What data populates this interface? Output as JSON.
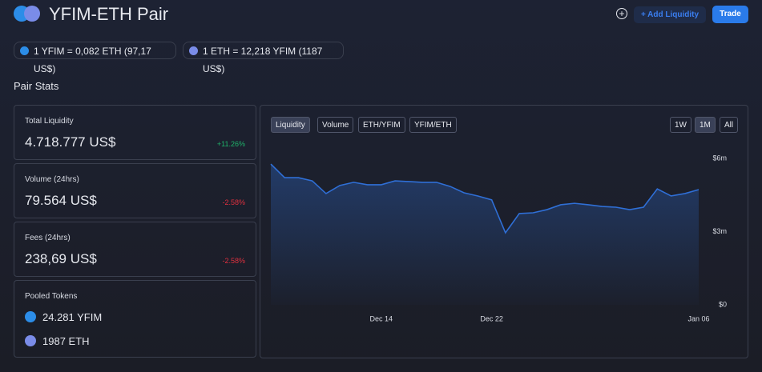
{
  "header": {
    "title": "YFIM-ETH Pair",
    "add_liquidity": "+ Add Liquidity",
    "trade": "Trade"
  },
  "rates": [
    "1 YFIM = 0,082 ETH (97,17 US$)",
    "1 ETH = 12,218 YFIM (1187 US$)"
  ],
  "section_title": "Pair Stats",
  "stats": [
    {
      "label": "Total Liquidity",
      "value": "4.718.777 US$",
      "change": "+11.26%"
    },
    {
      "label": "Volume (24hrs)",
      "value": "79.564 US$",
      "change": "-2.58%"
    },
    {
      "label": "Fees (24hrs)",
      "value": "238,69 US$",
      "change": "-2.58%"
    }
  ],
  "pooled": {
    "label": "Pooled Tokens",
    "tokens": [
      "24.281 YFIM",
      "1987 ETH"
    ]
  },
  "chart_tabs": [
    "Liquidity",
    "Volume",
    "ETH/YFIM",
    "YFIM/ETH"
  ],
  "chart_ranges": [
    "1W",
    "1M",
    "All"
  ],
  "chart_data": {
    "type": "area",
    "color": "#2f6fd6",
    "categories": [
      null,
      null,
      null,
      null,
      null,
      null,
      null,
      null,
      "Dec 14",
      null,
      null,
      null,
      null,
      null,
      null,
      null,
      "Dec 22",
      null,
      null,
      null,
      null,
      null,
      null,
      null,
      null,
      null,
      null,
      null,
      null,
      null,
      null,
      "Jan 06"
    ],
    "values": [
      5.77,
      5.21,
      5.21,
      5.08,
      4.56,
      4.89,
      5.02,
      4.92,
      4.92,
      5.08,
      5.05,
      5.02,
      5.02,
      4.85,
      4.59,
      4.46,
      4.3,
      2.95,
      3.74,
      3.77,
      3.9,
      4.1,
      4.16,
      4.1,
      4.03,
      4.0,
      3.9,
      4.0,
      4.75,
      4.46,
      4.56,
      4.72
    ],
    "ylim": [
      0,
      6
    ],
    "yticks": [
      {
        "value": 0,
        "label": "$0"
      },
      {
        "value": 3,
        "label": "$3m"
      },
      {
        "value": 6,
        "label": "$6m"
      }
    ]
  }
}
